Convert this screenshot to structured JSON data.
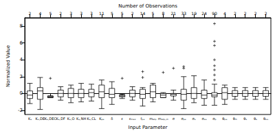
{
  "chart_data": {
    "type": "boxplot",
    "x_label": "Input Parameter",
    "y_label": "Normalized Value",
    "top_axis_label": "Number of Observations",
    "categories": [
      "Kₛ",
      "Kₛ,DE",
      "Kₛ,DEC",
      "Kₛ,DF",
      "Kₛ,O",
      "Kₛ,NH",
      "Kₛ,CL",
      "Kₚₑ",
      "δ",
      "ε",
      "εₘₐₓ",
      "fₚₑ",
      "mₐₜₚ",
      "mₐₜₚ,ₘ",
      "σ",
      "σₚₑ",
      "σₛ",
      "σₑₛ",
      "σₚ",
      "θₚₑ",
      "θₘ",
      "θₛ",
      "θₑ",
      "θₑₛ"
    ],
    "observations": [
      2,
      4,
      5,
      2,
      3,
      3,
      3,
      11,
      5,
      5,
      2,
      14,
      5,
      8,
      21,
      33,
      19,
      24,
      90,
      4,
      2,
      2,
      2,
      2
    ],
    "boxes": [
      [
        -1.2,
        -0.6,
        -0.2,
        0.3,
        1.2
      ],
      [
        -1.9,
        -0.7,
        0.3,
        0.7,
        1.9
      ],
      [
        -0.5,
        -0.5,
        -0.4,
        -0.3,
        -0.3
      ],
      [
        -0.8,
        -0.4,
        0.0,
        0.4,
        0.8
      ],
      [
        -1.1,
        -0.5,
        0.0,
        0.6,
        1.0
      ],
      [
        -1.0,
        -0.5,
        0.0,
        0.5,
        1.2
      ],
      [
        -0.9,
        -0.4,
        0.1,
        0.5,
        1.1
      ],
      [
        -1.8,
        -0.5,
        0.2,
        1.0,
        1.6
      ],
      [
        -1.3,
        -0.5,
        -0.1,
        0.6,
        1.4
      ],
      [
        -0.6,
        -0.4,
        -0.3,
        -0.2,
        -0.1
      ],
      [
        -0.8,
        -0.4,
        0.0,
        0.4,
        0.8
      ],
      [
        -1.5,
        -0.6,
        -0.1,
        0.5,
        0.7
      ],
      [
        -1.0,
        -0.5,
        0.2,
        1.0,
        1.2
      ],
      [
        -0.5,
        -0.5,
        -0.2,
        0.0,
        0.1
      ],
      [
        -0.8,
        -0.3,
        -0.1,
        0.0,
        0.4
      ],
      [
        -1.8,
        -0.8,
        -0.1,
        0.5,
        2.0
      ],
      [
        -1.1,
        -0.6,
        0.0,
        0.7,
        2.1
      ],
      [
        -1.4,
        -0.6,
        -0.2,
        0.4,
        1.6
      ],
      [
        -1.4,
        -0.4,
        -0.2,
        0.1,
        1.1
      ],
      [
        -1.3,
        -0.7,
        0.1,
        0.7,
        1.0
      ],
      [
        -0.7,
        -0.35,
        0.0,
        0.35,
        0.7
      ],
      [
        -0.7,
        -0.35,
        0.0,
        0.35,
        0.7
      ],
      [
        -0.7,
        -0.35,
        0.0,
        0.35,
        0.7
      ],
      [
        -0.7,
        -0.35,
        0.0,
        0.35,
        0.7
      ]
    ],
    "outliers": [
      [
        2,
        1.8
      ],
      [
        9,
        1.8
      ],
      [
        11,
        2.6
      ],
      [
        11,
        1.9
      ],
      [
        13,
        2.5
      ],
      [
        14,
        3.0
      ],
      [
        15,
        3.2
      ],
      [
        15,
        3.0
      ],
      [
        18,
        8.3
      ],
      [
        18,
        6.2
      ],
      [
        18,
        5.7
      ],
      [
        18,
        4.0
      ],
      [
        18,
        3.3
      ],
      [
        18,
        2.8
      ],
      [
        18,
        2.2
      ],
      [
        18,
        1.6
      ]
    ],
    "color": "#000000",
    "marker": "plus",
    "ylim": [
      -2.5,
      9
    ],
    "yticks": [
      -2,
      0,
      2,
      4,
      6,
      8
    ],
    "grid": false
  }
}
